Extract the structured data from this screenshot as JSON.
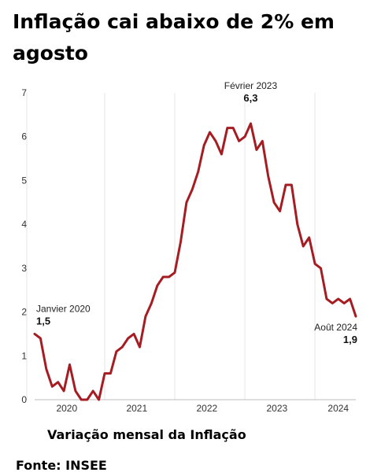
{
  "title": "Inflação cai abaixo de 2% em agosto",
  "caption": "Variação mensal da Inflação",
  "source": "Fonte: INSEE",
  "chart_data": {
    "type": "line",
    "title": "",
    "xlabel": "",
    "ylabel": "",
    "ylim": [
      0,
      7
    ],
    "yticks": [
      "0",
      "1",
      "2",
      "3",
      "4",
      "5",
      "6",
      "7"
    ],
    "xticks": [
      "2020",
      "2021",
      "2022",
      "2023",
      "2024"
    ],
    "grid": "vertical",
    "line_color": "#a51d22",
    "x_start": "2020-01",
    "values": [
      1.5,
      1.4,
      0.7,
      0.3,
      0.4,
      0.2,
      0.8,
      0.2,
      0.0,
      0.0,
      0.2,
      0.0,
      0.6,
      0.6,
      1.1,
      1.2,
      1.4,
      1.5,
      1.2,
      1.9,
      2.2,
      2.6,
      2.8,
      2.8,
      2.9,
      3.6,
      4.5,
      4.8,
      5.2,
      5.8,
      6.1,
      5.9,
      5.6,
      6.2,
      6.2,
      5.9,
      6.0,
      6.3,
      5.7,
      5.9,
      5.1,
      4.5,
      4.3,
      4.9,
      4.9,
      4.0,
      3.5,
      3.7,
      3.1,
      3.0,
      2.3,
      2.2,
      2.3,
      2.2,
      2.3,
      1.9
    ],
    "annotations": [
      {
        "label": "Janvier 2020",
        "value": "1,5"
      },
      {
        "label": "Février 2023",
        "value": "6,3"
      },
      {
        "label": "Août 2024",
        "value": "1,9"
      }
    ]
  }
}
